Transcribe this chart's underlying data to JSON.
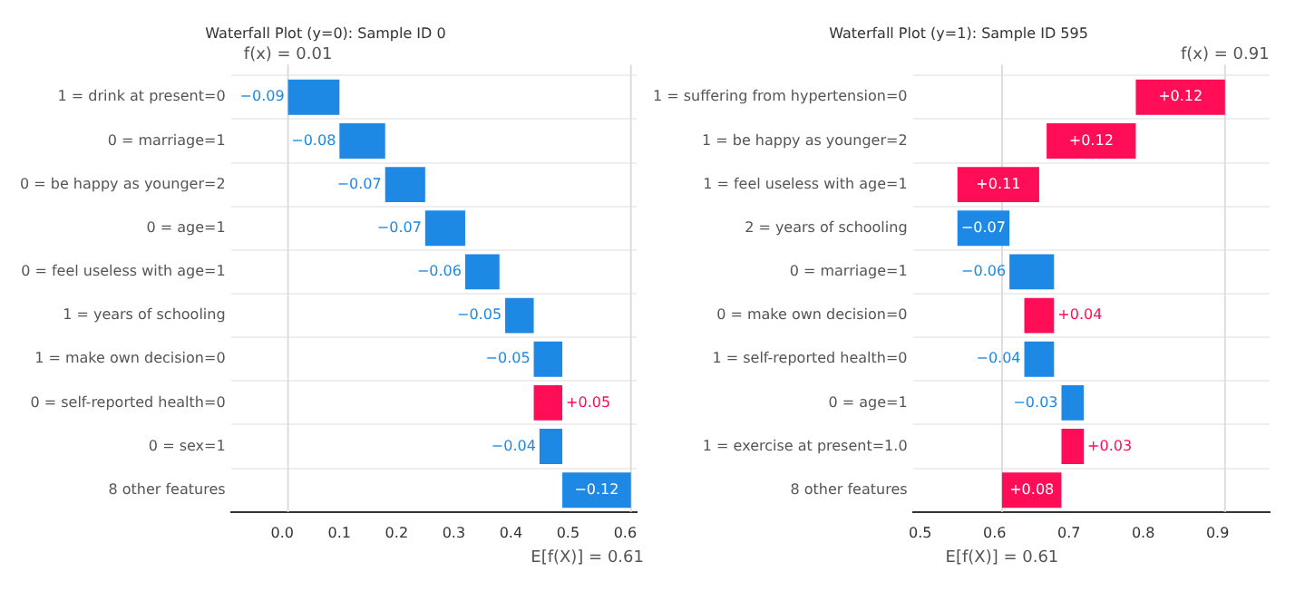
{
  "chart_data": [
    {
      "type": "bar",
      "orientation": "horizontal",
      "title": "Waterfall Plot (y=0): Sample ID 0",
      "categories": [
        "1 = drink at present=0",
        "0 = marriage=1",
        "0 = be happy as younger=2",
        "0 = age=1",
        "0 = feel useless with age=1",
        "1 = years of schooling",
        "1 = make own decision=0",
        "0 = self-reported health=0",
        "0 = sex=1",
        "8 other features"
      ],
      "values": [
        -0.09,
        -0.08,
        -0.07,
        -0.07,
        -0.06,
        -0.05,
        -0.05,
        0.05,
        -0.04,
        -0.12
      ],
      "base": [
        0.1,
        0.18,
        0.25,
        0.32,
        0.38,
        0.44,
        0.49,
        0.44,
        0.49,
        0.61
      ],
      "colors": [
        "#1e88e5",
        "#1e88e5",
        "#1e88e5",
        "#1e88e5",
        "#1e88e5",
        "#1e88e5",
        "#1e88e5",
        "#ff0d57",
        "#1e88e5",
        "#1e88e5"
      ],
      "value_labels": [
        "−0.09",
        "−0.08",
        "−0.07",
        "−0.07",
        "−0.06",
        "−0.05",
        "−0.05",
        "+0.05",
        "−0.04",
        "−0.12"
      ],
      "xlim": [
        -0.09,
        0.62
      ],
      "xticks": [
        {
          "value": 0,
          "label": "0.0"
        },
        0.1,
        0.2,
        0.3,
        0.4,
        0.5,
        0.6
      ],
      "grid": "y",
      "legend": false,
      "ref_lines": [
        {
          "axis": "x",
          "value": 0.01,
          "label": "f(x) = 0.01"
        },
        {
          "axis": "x",
          "value": 0.61,
          "label": "E[f(X)] = 0.61"
        }
      ]
    },
    {
      "type": "bar",
      "orientation": "horizontal",
      "title": "Waterfall Plot (y=1): Sample ID 595",
      "categories": [
        "1 = suffering from hypertension=0",
        "1 = be happy as younger=2",
        "1 = feel useless with age=1",
        "2 = years of schooling",
        "0 = marriage=1",
        "0 = make own decision=0",
        "1 = self-reported health=0",
        "0 = age=1",
        "1 = exercise at present=1.0",
        "8 other features"
      ],
      "values": [
        0.12,
        0.12,
        0.11,
        -0.07,
        -0.06,
        0.04,
        -0.04,
        -0.03,
        0.03,
        0.08
      ],
      "base": [
        0.79,
        0.67,
        0.55,
        0.62,
        0.68,
        0.64,
        0.68,
        0.72,
        0.69,
        0.61
      ],
      "colors": [
        "#ff0d57",
        "#ff0d57",
        "#ff0d57",
        "#1e88e5",
        "#1e88e5",
        "#ff0d57",
        "#1e88e5",
        "#1e88e5",
        "#ff0d57",
        "#ff0d57"
      ],
      "value_labels": [
        "+0.12",
        "+0.12",
        "+0.11",
        "−0.07",
        "−0.06",
        "+0.04",
        "−0.04",
        "−0.03",
        "+0.03",
        "+0.08"
      ],
      "xlim": [
        0.49,
        0.97
      ],
      "xticks": [
        0.5,
        0.6,
        0.7,
        0.8,
        0.9
      ],
      "grid": "y",
      "legend": false,
      "ref_lines": [
        {
          "axis": "x",
          "value": 0.91,
          "label": "f(x) = 0.91"
        },
        {
          "axis": "x",
          "value": 0.61,
          "label": "E[f(X)] = 0.61"
        }
      ]
    }
  ]
}
